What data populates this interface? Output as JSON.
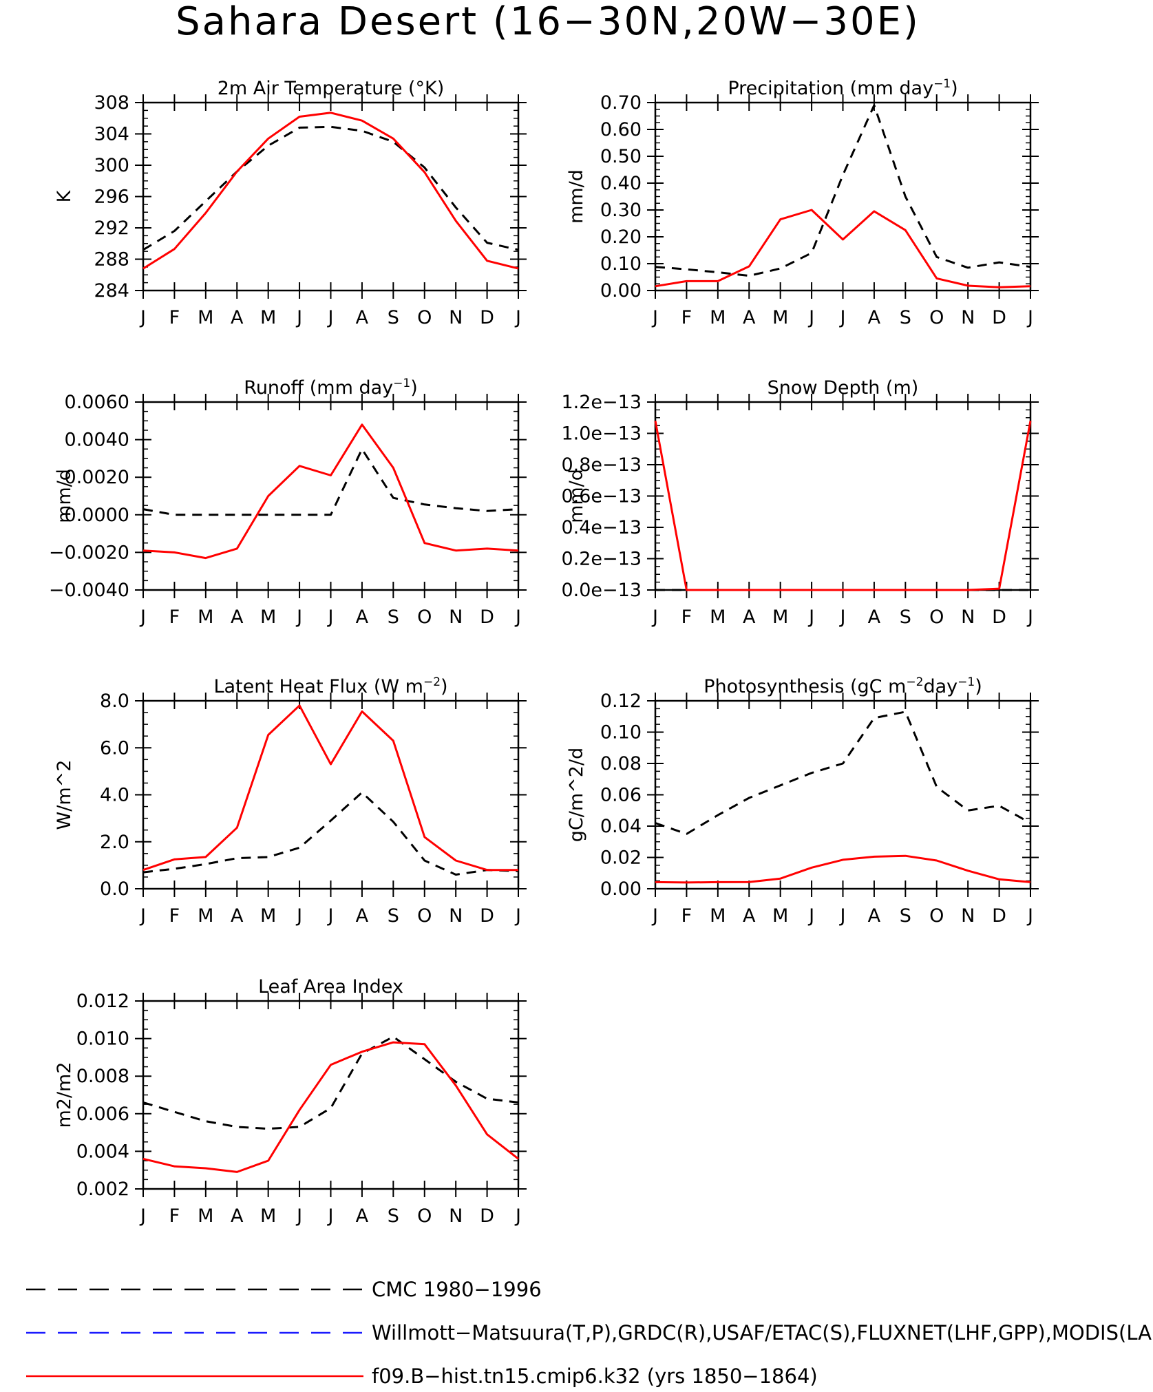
{
  "title": "Sahara Desert (16−30N,20W−30E)",
  "months": [
    "J",
    "F",
    "M",
    "A",
    "M",
    "J",
    "J",
    "A",
    "S",
    "O",
    "N",
    "D",
    "J"
  ],
  "colors": {
    "cmc": "#000000",
    "obs": "#1a1aff",
    "model": "#ff0000"
  },
  "legend": [
    {
      "key": "cmc",
      "label": "CMC 1980−1996",
      "style": "dashed"
    },
    {
      "key": "obs",
      "label": "Willmott−Matsuura(T,P),GRDC(R),USAF/ETAC(S),FLUXNET(LHF,GPP),MODIS(LAI)",
      "style": "dashed"
    },
    {
      "key": "model",
      "label": "f09.B−hist.tn15.cmip6.k32 (yrs 1850−1864)",
      "style": "solid"
    }
  ],
  "chart_data": [
    {
      "type": "line",
      "title": "2m Air Temperature (°K)",
      "ylabel": "K",
      "ylim": [
        284,
        308
      ],
      "yticks": [
        "284",
        "288",
        "292",
        "296",
        "300",
        "304",
        "308"
      ],
      "series": [
        {
          "name": "CMC 1980−1996",
          "key": "cmc",
          "values": [
            289.2,
            291.6,
            295.4,
            299.2,
            302.5,
            304.8,
            304.9,
            304.4,
            303.0,
            299.7,
            294.6,
            290.1,
            289.2
          ]
        },
        {
          "name": "f09.B−hist.tn15.cmip6.k32 (yrs 1850−1864)",
          "key": "model",
          "values": [
            286.8,
            289.3,
            293.9,
            299.2,
            303.4,
            306.2,
            306.7,
            305.7,
            303.4,
            299.1,
            292.9,
            287.8,
            286.8
          ]
        }
      ]
    },
    {
      "type": "line",
      "title": "Precipitation (mm day",
      "title_sup": "−1",
      "title_end": ")",
      "ylabel": "mm/d",
      "ylim": [
        0,
        0.7
      ],
      "yticks": [
        "0.00",
        "0.10",
        "0.20",
        "0.30",
        "0.40",
        "0.50",
        "0.60",
        "0.70"
      ],
      "series": [
        {
          "name": "CMC 1980−1996",
          "key": "cmc",
          "values": [
            0.088,
            0.079,
            0.068,
            0.055,
            0.082,
            0.14,
            0.43,
            0.69,
            0.35,
            0.125,
            0.085,
            0.105,
            0.088
          ]
        },
        {
          "name": "f09.B−hist.tn15.cmip6.k32 (yrs 1850−1864)",
          "key": "model",
          "values": [
            0.016,
            0.035,
            0.035,
            0.09,
            0.265,
            0.3,
            0.19,
            0.295,
            0.225,
            0.045,
            0.018,
            0.012,
            0.016
          ]
        }
      ]
    },
    {
      "type": "line",
      "title": "Runoff (mm day",
      "title_sup": "−1",
      "title_end": ")",
      "ylabel": "mm/d",
      "ylim": [
        -0.004,
        0.006
      ],
      "yticks": [
        "−0.0040",
        "−0.0020",
        "0.0000",
        "0.0020",
        "0.0040",
        "0.0060"
      ],
      "series": [
        {
          "name": "CMC 1980−1996",
          "key": "cmc",
          "values": [
            0.0003,
            0.0,
            0.0,
            0.0,
            0.0,
            0.0,
            0.0,
            0.0035,
            0.0009,
            0.00055,
            0.00035,
            0.0002,
            0.0003
          ]
        },
        {
          "name": "f09.B−hist.tn15.cmip6.k32 (yrs 1850−1864)",
          "key": "model",
          "values": [
            -0.0019,
            -0.002,
            -0.0023,
            -0.0018,
            0.001,
            0.0026,
            0.0021,
            0.0048,
            0.0025,
            -0.0015,
            -0.0019,
            -0.0018,
            -0.0019
          ]
        }
      ]
    },
    {
      "type": "line",
      "title": "Snow Depth (m)",
      "ylabel": "mm/d",
      "ylim": [
        0,
        1.2e-13
      ],
      "yticks": [
        "0.0e−13",
        "0.2e−13",
        "0.4e−13",
        "0.6e−13",
        "0.8e−13",
        "1.0e−13",
        "1.2e−13"
      ],
      "series": [
        {
          "name": "CMC 1980−1996",
          "key": "cmc",
          "values": [
            0,
            0,
            0,
            0,
            0,
            0,
            0,
            0,
            0,
            0,
            0,
            0,
            0
          ]
        },
        {
          "name": "f09.B−hist.tn15.cmip6.k32 (yrs 1850−1864)",
          "key": "model",
          "values": [
            1.08e-13,
            0,
            0,
            0,
            0,
            0,
            0,
            0,
            0,
            0,
            0,
            8.5e-16,
            1.08e-13
          ]
        }
      ]
    },
    {
      "type": "line",
      "title": "Latent Heat Flux (W m",
      "title_sup": "−2",
      "title_end": ")",
      "ylabel": "W/m^2",
      "ylim": [
        0,
        8
      ],
      "yticks": [
        "0.0",
        "2.0",
        "4.0",
        "6.0",
        "8.0"
      ],
      "series": [
        {
          "name": "CMC 1980−1996",
          "key": "cmc",
          "values": [
            0.7,
            0.85,
            1.05,
            1.3,
            1.35,
            1.75,
            2.9,
            4.1,
            2.85,
            1.2,
            0.6,
            0.8,
            0.75
          ]
        },
        {
          "name": "f09.B−hist.tn15.cmip6.k32 (yrs 1850−1864)",
          "key": "model",
          "values": [
            0.8,
            1.25,
            1.35,
            2.6,
            6.55,
            7.8,
            5.3,
            7.55,
            6.3,
            2.2,
            1.2,
            0.8,
            0.8
          ]
        }
      ]
    },
    {
      "type": "line",
      "title": "Photosynthesis (gC m",
      "title_sup": "−2",
      "title_mid": "day",
      "title_sup2": "−1",
      "title_end": ")",
      "ylabel": "gC/m^2/d",
      "ylim": [
        0,
        0.12
      ],
      "yticks": [
        "0.00",
        "0.02",
        "0.04",
        "0.06",
        "0.08",
        "0.10",
        "0.12"
      ],
      "series": [
        {
          "name": "CMC 1980−1996",
          "key": "cmc",
          "values": [
            0.042,
            0.035,
            0.047,
            0.058,
            0.066,
            0.074,
            0.08,
            0.109,
            0.113,
            0.065,
            0.05,
            0.053,
            0.042
          ]
        },
        {
          "name": "f09.B−hist.tn15.cmip6.k32 (yrs 1850−1864)",
          "key": "model",
          "values": [
            0.0042,
            0.004,
            0.0042,
            0.0043,
            0.0065,
            0.0135,
            0.0185,
            0.0205,
            0.021,
            0.018,
            0.0115,
            0.006,
            0.0042
          ]
        }
      ]
    },
    {
      "type": "line",
      "title": "Leaf Area Index",
      "ylabel": "m2/m2",
      "ylim": [
        0.002,
        0.012
      ],
      "yticks": [
        "0.002",
        "0.004",
        "0.006",
        "0.008",
        "0.010",
        "0.012"
      ],
      "series": [
        {
          "name": "CMC 1980−1996",
          "key": "cmc",
          "values": [
            0.0066,
            0.0061,
            0.0056,
            0.0053,
            0.0052,
            0.0053,
            0.0063,
            0.0092,
            0.0101,
            0.0089,
            0.0077,
            0.0068,
            0.0066
          ]
        },
        {
          "name": "f09.B−hist.tn15.cmip6.k32 (yrs 1850−1864)",
          "key": "model",
          "values": [
            0.0036,
            0.0032,
            0.0031,
            0.0029,
            0.0035,
            0.0062,
            0.0086,
            0.0093,
            0.0098,
            0.0097,
            0.0075,
            0.0049,
            0.0036
          ]
        }
      ]
    }
  ]
}
